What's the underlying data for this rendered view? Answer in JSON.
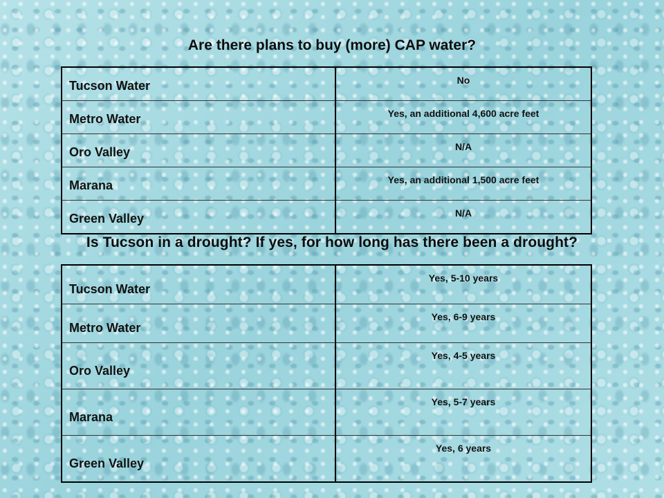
{
  "section1": {
    "heading": "Are there plans to buy (more) CAP water?",
    "rows": [
      {
        "name": "Tucson Water",
        "answer": "No"
      },
      {
        "name": "Metro Water",
        "answer": "Yes, an additional 4,600 acre feet"
      },
      {
        "name": "Oro Valley",
        "answer": "N/A"
      },
      {
        "name": "Marana",
        "answer": "Yes, an additional 1,500 acre feet"
      },
      {
        "name": "Green Valley",
        "answer": "N/A"
      }
    ]
  },
  "section2": {
    "heading": "Is Tucson in a drought?  If yes, for how long has there been a drought?",
    "rows": [
      {
        "name": "Tucson Water",
        "answer": "Yes, 5-10 years"
      },
      {
        "name": "Metro Water",
        "answer": "Yes, 6-9 years"
      },
      {
        "name": "Oro Valley",
        "answer": "Yes, 4-5 years"
      },
      {
        "name": "Marana",
        "answer": "Yes, 5-7 years"
      },
      {
        "name": "Green Valley",
        "answer": "Yes, 6 years"
      }
    ]
  }
}
